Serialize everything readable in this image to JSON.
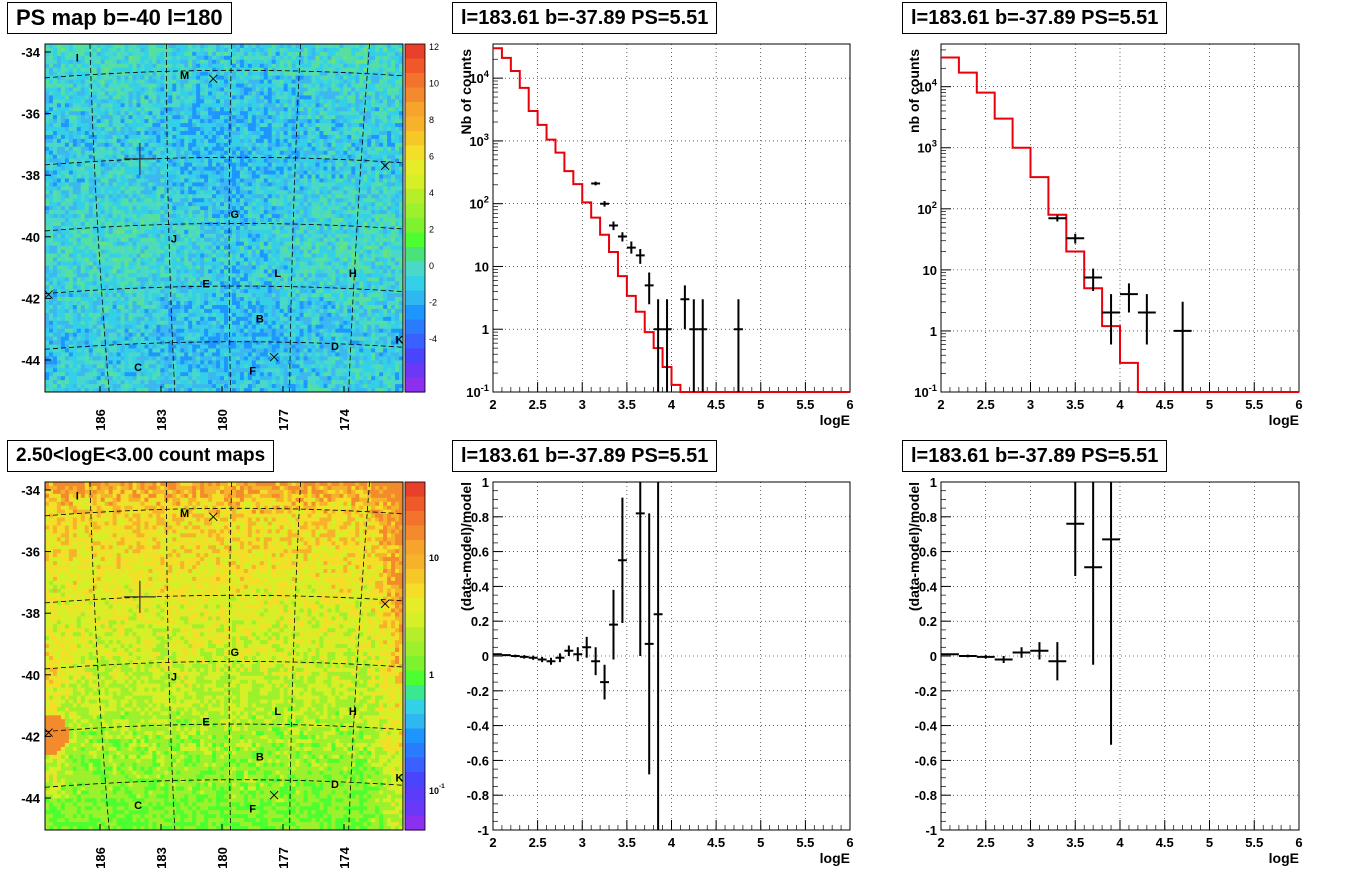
{
  "map_panels": [
    {
      "title": "PS map b=-40 l=180",
      "kind": "ps",
      "ytick_labels": [
        "-34",
        "-36",
        "-38",
        "-40",
        "-42",
        "-44"
      ],
      "xtick_labels": [
        "186",
        "183",
        "180",
        "177",
        "174"
      ],
      "colorbar_labels": [
        "12",
        "10",
        "8",
        "6",
        "4",
        "2",
        "0",
        "-2",
        "-4"
      ],
      "labels": [
        "I",
        "M",
        "G",
        "J",
        "L",
        "H",
        "E",
        "B",
        "D",
        "K",
        "C",
        "F"
      ]
    },
    {
      "title": "2.50<logE<3.00 count maps",
      "kind": "counts",
      "ytick_labels": [
        "-34",
        "-36",
        "-38",
        "-40",
        "-42",
        "-44"
      ],
      "xtick_labels": [
        "186",
        "183",
        "180",
        "177",
        "174"
      ],
      "colorbar_labels": [
        "10",
        "1",
        "10^-1"
      ],
      "labels": [
        "I",
        "M",
        "G",
        "J",
        "L",
        "H",
        "E",
        "B",
        "D",
        "K",
        "C",
        "F"
      ]
    }
  ],
  "chart_data": [
    {
      "type": "line",
      "title": "l=183.61 b=-37.89 PS=5.51",
      "xlabel": "logE",
      "ylabel": "Nb of counts",
      "xlim": [
        2,
        6
      ],
      "ylim": [
        0.1,
        35000
      ],
      "log_y": true,
      "grid": true,
      "xtick_labels": [
        "2",
        "2.5",
        "3",
        "3.5",
        "4",
        "4.5",
        "5",
        "5.5",
        "6"
      ],
      "ytick_labels": [
        "10^-1",
        "1",
        "10",
        "10^2",
        "10^3",
        "10^4"
      ],
      "model": {
        "edges": [
          2.0,
          2.1,
          2.2,
          2.3,
          2.4,
          2.5,
          2.6,
          2.7,
          2.8,
          2.9,
          3.0,
          3.1,
          3.2,
          3.3,
          3.4,
          3.5,
          3.6,
          3.7,
          3.8,
          3.9,
          4.0,
          4.1,
          4.2,
          4.3,
          6.0
        ],
        "values": [
          30000,
          21000,
          13000,
          7000,
          3000,
          1800,
          1050,
          650,
          330,
          205,
          105,
          60,
          32,
          17,
          7,
          3.4,
          1.9,
          0.9,
          0.5,
          0.25,
          0.13,
          0.1,
          0.1,
          0.1
        ]
      },
      "points": [
        {
          "x": 3.15,
          "y": 210,
          "xerr": 0.05,
          "yerr_lo": 14,
          "yerr_hi": 15
        },
        {
          "x": 3.25,
          "y": 100,
          "xerr": 0.05,
          "yerr_lo": 10,
          "yerr_hi": 10
        },
        {
          "x": 3.35,
          "y": 45,
          "xerr": 0.05,
          "yerr_lo": 7,
          "yerr_hi": 7
        },
        {
          "x": 3.45,
          "y": 30,
          "xerr": 0.05,
          "yerr_lo": 5,
          "yerr_hi": 5
        },
        {
          "x": 3.55,
          "y": 20,
          "xerr": 0.05,
          "yerr_lo": 4,
          "yerr_hi": 5
        },
        {
          "x": 3.65,
          "y": 15,
          "xerr": 0.05,
          "yerr_lo": 4,
          "yerr_hi": 4
        },
        {
          "x": 3.75,
          "y": 5,
          "xerr": 0.05,
          "yerr_lo": 2.5,
          "yerr_hi": 3
        },
        {
          "x": 3.85,
          "y": 1,
          "xerr": 0.05,
          "yerr_lo": 0.9,
          "yerr_hi": 2
        },
        {
          "x": 3.95,
          "y": 1,
          "xerr": 0.05,
          "yerr_lo": 0.9,
          "yerr_hi": 2
        },
        {
          "x": 4.15,
          "y": 3,
          "xerr": 0.05,
          "yerr_lo": 2,
          "yerr_hi": 2
        },
        {
          "x": 4.25,
          "y": 1,
          "xerr": 0.05,
          "yerr_lo": 0.9,
          "yerr_hi": 2
        },
        {
          "x": 4.35,
          "y": 1,
          "xerr": 0.05,
          "yerr_lo": 0.9,
          "yerr_hi": 2
        },
        {
          "x": 4.75,
          "y": 1,
          "xerr": 0.05,
          "yerr_lo": 0.9,
          "yerr_hi": 2
        }
      ]
    },
    {
      "type": "line",
      "title": "l=183.61 b=-37.89 PS=5.51",
      "xlabel": "logE",
      "ylabel": "nb of counts",
      "xlim": [
        2,
        6
      ],
      "ylim": [
        0.1,
        50000
      ],
      "log_y": true,
      "grid": true,
      "xtick_labels": [
        "2",
        "2.5",
        "3",
        "3.5",
        "4",
        "4.5",
        "5",
        "5.5",
        "6"
      ],
      "ytick_labels": [
        "10^-1",
        "1",
        "10",
        "10^2",
        "10^3",
        "10^4"
      ],
      "model": {
        "edges": [
          2.0,
          2.2,
          2.4,
          2.6,
          2.8,
          3.0,
          3.2,
          3.4,
          3.6,
          3.8,
          4.0,
          4.2,
          4.4,
          6.0
        ],
        "values": [
          30000,
          17000,
          8000,
          3000,
          1000,
          330,
          80,
          20,
          5,
          1.2,
          0.3,
          0.1,
          0.1
        ]
      },
      "points": [
        {
          "x": 3.3,
          "y": 70,
          "xerr": 0.1,
          "yerr_lo": 8,
          "yerr_hi": 8
        },
        {
          "x": 3.5,
          "y": 33,
          "xerr": 0.1,
          "yerr_lo": 6,
          "yerr_hi": 6
        },
        {
          "x": 3.7,
          "y": 7.5,
          "xerr": 0.1,
          "yerr_lo": 3,
          "yerr_hi": 3
        },
        {
          "x": 3.9,
          "y": 2,
          "xerr": 0.1,
          "yerr_lo": 1.4,
          "yerr_hi": 2
        },
        {
          "x": 4.1,
          "y": 4,
          "xerr": 0.1,
          "yerr_lo": 2,
          "yerr_hi": 2
        },
        {
          "x": 4.3,
          "y": 2,
          "xerr": 0.1,
          "yerr_lo": 1.4,
          "yerr_hi": 2
        },
        {
          "x": 4.7,
          "y": 1,
          "xerr": 0.1,
          "yerr_lo": 0.9,
          "yerr_hi": 2
        }
      ]
    },
    {
      "type": "scatter",
      "title": "l=183.61 b=-37.89 PS=5.51",
      "xlabel": "logE",
      "ylabel": "(data-model)/model",
      "xlim": [
        2,
        6
      ],
      "ylim": [
        -1,
        1
      ],
      "grid": true,
      "xtick_labels": [
        "2",
        "2.5",
        "3",
        "3.5",
        "4",
        "4.5",
        "5",
        "5.5",
        "6"
      ],
      "ytick_labels": [
        "-1",
        "-0.8",
        "-0.6",
        "-0.4",
        "-0.2",
        "0",
        "0.2",
        "0.4",
        "0.6",
        "0.8",
        "1"
      ],
      "points": [
        {
          "x": 2.05,
          "y": 0.01,
          "xerr": 0.05,
          "yerr": 0.005
        },
        {
          "x": 2.15,
          "y": 0.005,
          "xerr": 0.05,
          "yerr": 0.005
        },
        {
          "x": 2.25,
          "y": 0.0,
          "xerr": 0.05,
          "yerr": 0.008
        },
        {
          "x": 2.35,
          "y": -0.005,
          "xerr": 0.05,
          "yerr": 0.01
        },
        {
          "x": 2.45,
          "y": -0.01,
          "xerr": 0.05,
          "yerr": 0.012
        },
        {
          "x": 2.55,
          "y": -0.02,
          "xerr": 0.05,
          "yerr": 0.015
        },
        {
          "x": 2.65,
          "y": -0.03,
          "xerr": 0.05,
          "yerr": 0.02
        },
        {
          "x": 2.75,
          "y": -0.01,
          "xerr": 0.05,
          "yerr": 0.025
        },
        {
          "x": 2.85,
          "y": 0.03,
          "xerr": 0.05,
          "yerr": 0.03
        },
        {
          "x": 2.95,
          "y": 0.01,
          "xerr": 0.05,
          "yerr": 0.04
        },
        {
          "x": 3.05,
          "y": 0.05,
          "xerr": 0.05,
          "yerr": 0.06
        },
        {
          "x": 3.15,
          "y": -0.03,
          "xerr": 0.05,
          "yerr": 0.08
        },
        {
          "x": 3.25,
          "y": -0.15,
          "xerr": 0.05,
          "yerr": 0.1
        },
        {
          "x": 3.35,
          "y": 0.18,
          "xerr": 0.05,
          "yerr": 0.2
        },
        {
          "x": 3.45,
          "y": 0.55,
          "xerr": 0.05,
          "yerr": 0.36
        },
        {
          "x": 3.65,
          "y": 0.82,
          "xerr": 0.05,
          "yerr": 0.82
        },
        {
          "x": 3.75,
          "y": 0.07,
          "xerr": 0.05,
          "yerr": 0.75
        },
        {
          "x": 3.85,
          "y": 0.24,
          "xerr": 0.05,
          "yerr": 1.24
        }
      ]
    },
    {
      "type": "scatter",
      "title": "l=183.61 b=-37.89 PS=5.51",
      "xlabel": "logE",
      "ylabel": "(data-model)/model",
      "xlim": [
        2,
        6
      ],
      "ylim": [
        -1,
        1
      ],
      "grid": true,
      "xtick_labels": [
        "2",
        "2.5",
        "3",
        "3.5",
        "4",
        "4.5",
        "5",
        "5.5",
        "6"
      ],
      "ytick_labels": [
        "-1",
        "-0.8",
        "-0.6",
        "-0.4",
        "-0.2",
        "0",
        "0.2",
        "0.4",
        "0.6",
        "0.8",
        "1"
      ],
      "points": [
        {
          "x": 2.1,
          "y": 0.01,
          "xerr": 0.1,
          "yerr": 0.005
        },
        {
          "x": 2.3,
          "y": 0.0,
          "xerr": 0.1,
          "yerr": 0.008
        },
        {
          "x": 2.5,
          "y": -0.005,
          "xerr": 0.1,
          "yerr": 0.01
        },
        {
          "x": 2.7,
          "y": -0.02,
          "xerr": 0.1,
          "yerr": 0.02
        },
        {
          "x": 2.9,
          "y": 0.02,
          "xerr": 0.1,
          "yerr": 0.03
        },
        {
          "x": 3.1,
          "y": 0.03,
          "xerr": 0.1,
          "yerr": 0.05
        },
        {
          "x": 3.3,
          "y": -0.03,
          "xerr": 0.1,
          "yerr": 0.11
        },
        {
          "x": 3.5,
          "y": 0.76,
          "xerr": 0.1,
          "yerr": 0.3
        },
        {
          "x": 3.7,
          "y": 0.51,
          "xerr": 0.1,
          "yerr": 0.56
        },
        {
          "x": 3.9,
          "y": 0.67,
          "xerr": 0.1,
          "yerr": 1.18
        }
      ]
    }
  ]
}
